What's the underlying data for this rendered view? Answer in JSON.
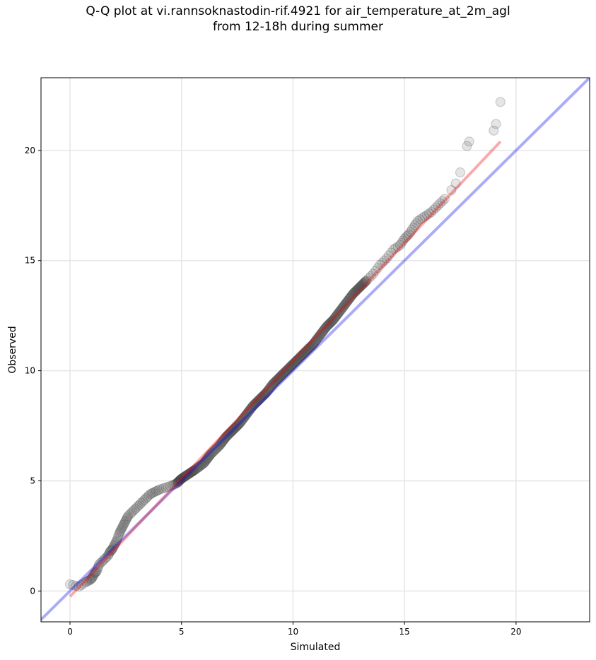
{
  "chart_data": {
    "type": "scatter",
    "title_line1": "Q-Q plot at vi.rannsoknastodin-rif.4921 for air_temperature_at_2m_agl",
    "title_line2": "from 12-18h during summer",
    "xlabel": "Simulated",
    "ylabel": "Observed",
    "xlim": [
      -1.3,
      23.3
    ],
    "ylim": [
      -1.4,
      23.3
    ],
    "xticks": [
      0,
      5,
      10,
      15,
      20
    ],
    "yticks": [
      0,
      5,
      10,
      15,
      20
    ],
    "grid": true,
    "qq_points": [
      [
        0.0,
        0.3
      ],
      [
        0.4,
        0.2
      ],
      [
        0.7,
        0.4
      ],
      [
        0.9,
        0.5
      ],
      [
        1.0,
        0.6
      ],
      [
        1.1,
        0.8
      ],
      [
        1.2,
        0.9
      ],
      [
        1.3,
        1.2
      ],
      [
        1.5,
        1.4
      ],
      [
        1.7,
        1.6
      ],
      [
        1.8,
        1.8
      ],
      [
        1.9,
        1.9
      ],
      [
        2.0,
        2.1
      ],
      [
        2.1,
        2.3
      ],
      [
        2.2,
        2.6
      ],
      [
        2.3,
        2.8
      ],
      [
        2.4,
        3.0
      ],
      [
        2.5,
        3.2
      ],
      [
        2.6,
        3.4
      ],
      [
        2.8,
        3.6
      ],
      [
        3.0,
        3.8
      ],
      [
        3.2,
        4.0
      ],
      [
        3.4,
        4.2
      ],
      [
        3.6,
        4.4
      ],
      [
        3.8,
        4.5
      ],
      [
        4.0,
        4.6
      ],
      [
        4.3,
        4.7
      ],
      [
        4.6,
        4.8
      ],
      [
        4.8,
        4.9
      ],
      [
        5.0,
        5.1
      ],
      [
        5.3,
        5.3
      ],
      [
        5.6,
        5.5
      ],
      [
        6.0,
        5.8
      ],
      [
        6.3,
        6.2
      ],
      [
        6.7,
        6.6
      ],
      [
        7.0,
        7.0
      ],
      [
        7.3,
        7.3
      ],
      [
        7.6,
        7.6
      ],
      [
        7.9,
        8.0
      ],
      [
        8.2,
        8.4
      ],
      [
        8.5,
        8.7
      ],
      [
        8.8,
        9.0
      ],
      [
        9.1,
        9.4
      ],
      [
        9.4,
        9.7
      ],
      [
        9.7,
        10.0
      ],
      [
        10.0,
        10.3
      ],
      [
        10.3,
        10.6
      ],
      [
        10.6,
        10.9
      ],
      [
        10.9,
        11.2
      ],
      [
        11.2,
        11.6
      ],
      [
        11.5,
        12.0
      ],
      [
        11.8,
        12.3
      ],
      [
        12.1,
        12.7
      ],
      [
        12.4,
        13.1
      ],
      [
        12.7,
        13.5
      ],
      [
        13.0,
        13.8
      ],
      [
        13.3,
        14.1
      ],
      [
        13.6,
        14.4
      ],
      [
        13.9,
        14.8
      ],
      [
        14.2,
        15.1
      ],
      [
        14.5,
        15.5
      ],
      [
        14.8,
        15.7
      ],
      [
        15.0,
        16.0
      ],
      [
        15.2,
        16.2
      ],
      [
        15.4,
        16.5
      ],
      [
        15.6,
        16.8
      ],
      [
        15.9,
        17.0
      ],
      [
        16.2,
        17.2
      ],
      [
        16.5,
        17.5
      ],
      [
        16.8,
        17.8
      ],
      [
        17.1,
        18.2
      ],
      [
        17.3,
        18.5
      ],
      [
        17.5,
        19.0
      ],
      [
        17.8,
        20.2
      ],
      [
        17.9,
        20.4
      ],
      [
        19.0,
        20.9
      ],
      [
        19.1,
        21.2
      ],
      [
        19.3,
        22.2
      ]
    ],
    "reference_line": {
      "color": "#0000ee",
      "x": [
        -1.3,
        23.3
      ],
      "y": [
        -1.3,
        23.3
      ]
    },
    "fit_line": {
      "color": "#ee0000",
      "x": [
        0.0,
        19.3
      ],
      "y": [
        -0.25,
        20.4
      ]
    },
    "point_color": "#333333"
  }
}
